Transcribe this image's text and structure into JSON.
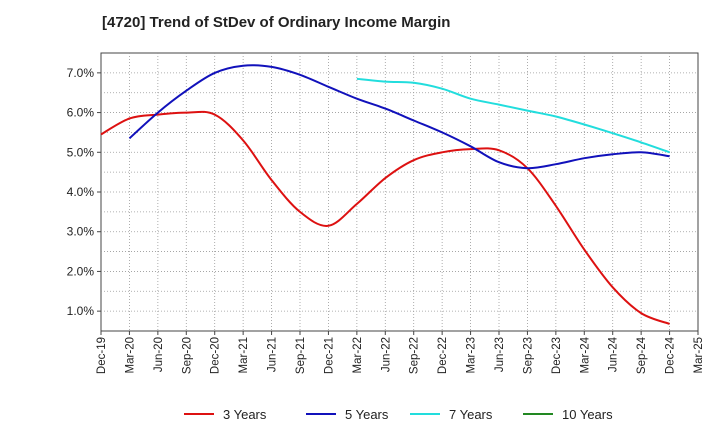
{
  "chart_data": {
    "type": "line",
    "title": "[4720]  Trend of StDev of Ordinary Income Margin",
    "xlabel": "",
    "ylabel": "",
    "ylim": [
      0.5,
      7.5
    ],
    "y_ticks": [
      1.0,
      2.0,
      3.0,
      4.0,
      5.0,
      6.0,
      7.0
    ],
    "y_tick_labels": [
      "1.0%",
      "2.0%",
      "3.0%",
      "4.0%",
      "5.0%",
      "6.0%",
      "7.0%"
    ],
    "x_tick_labels": [
      "Dec-19",
      "Mar-20",
      "Jun-20",
      "Sep-20",
      "Dec-20",
      "Mar-21",
      "Jun-21",
      "Sep-21",
      "Dec-21",
      "Mar-22",
      "Jun-22",
      "Sep-22",
      "Dec-22",
      "Mar-23",
      "Jun-23",
      "Sep-23",
      "Dec-23",
      "Mar-24",
      "Jun-24",
      "Sep-24",
      "Dec-24",
      "Mar-25"
    ],
    "grid": true,
    "legend_position": "bottom",
    "series": [
      {
        "name": "3 Years",
        "color": "#dd1111",
        "x": [
          "Dec-19",
          "Mar-20",
          "Jun-20",
          "Sep-20",
          "Dec-20",
          "Mar-21",
          "Jun-21",
          "Sep-21",
          "Dec-21",
          "Mar-22",
          "Jun-22",
          "Sep-22",
          "Dec-22",
          "Mar-23",
          "Jun-23",
          "Sep-23",
          "Dec-23",
          "Mar-24",
          "Jun-24",
          "Sep-24",
          "Dec-24"
        ],
        "values": [
          5.45,
          5.85,
          5.95,
          6.0,
          5.95,
          5.3,
          4.3,
          3.5,
          3.15,
          3.7,
          4.35,
          4.8,
          5.0,
          5.08,
          5.05,
          4.6,
          3.65,
          2.55,
          1.6,
          0.95,
          0.68
        ]
      },
      {
        "name": "5 Years",
        "color": "#1111bb",
        "x": [
          "Mar-20",
          "Jun-20",
          "Sep-20",
          "Dec-20",
          "Mar-21",
          "Jun-21",
          "Sep-21",
          "Dec-21",
          "Mar-22",
          "Jun-22",
          "Sep-22",
          "Dec-22",
          "Mar-23",
          "Jun-23",
          "Sep-23",
          "Dec-23",
          "Mar-24",
          "Jun-24",
          "Sep-24",
          "Dec-24"
        ],
        "values": [
          5.35,
          6.0,
          6.55,
          7.0,
          7.18,
          7.15,
          6.95,
          6.65,
          6.35,
          6.1,
          5.8,
          5.5,
          5.15,
          4.75,
          4.6,
          4.7,
          4.85,
          4.95,
          5.0,
          4.9
        ]
      },
      {
        "name": "7 Years",
        "color": "#22dddd",
        "x": [
          "Mar-22",
          "Jun-22",
          "Sep-22",
          "Dec-22",
          "Mar-23",
          "Jun-23",
          "Sep-23",
          "Dec-23",
          "Mar-24",
          "Jun-24",
          "Sep-24",
          "Dec-24"
        ],
        "values": [
          6.85,
          6.78,
          6.75,
          6.6,
          6.35,
          6.2,
          6.05,
          5.9,
          5.7,
          5.48,
          5.25,
          5.0
        ]
      },
      {
        "name": "10 Years",
        "color": "#228822",
        "x": [],
        "values": []
      }
    ]
  }
}
